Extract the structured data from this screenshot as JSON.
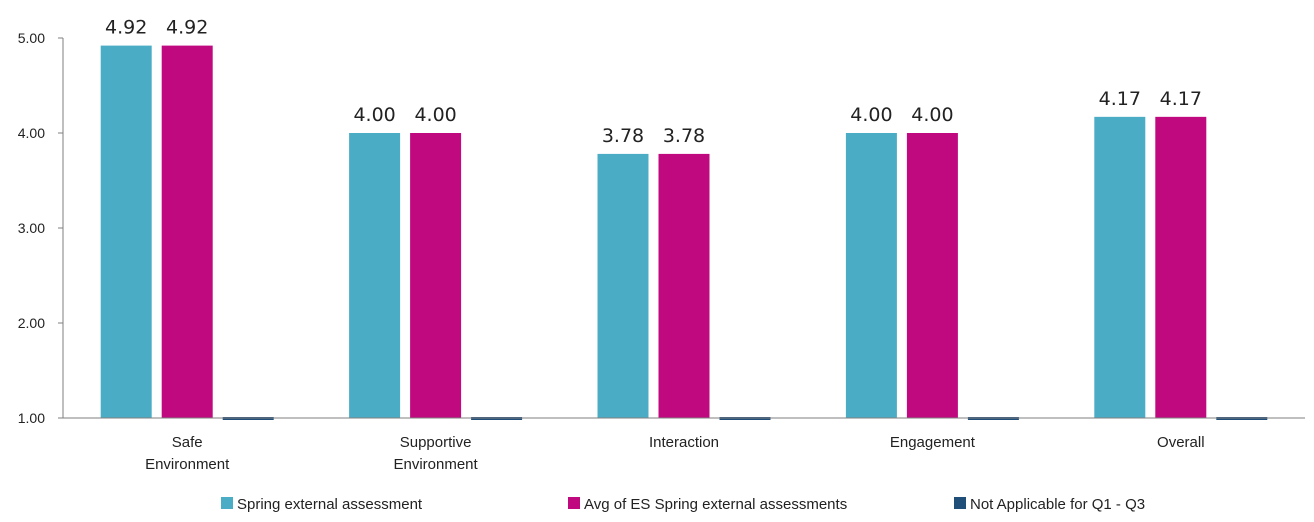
{
  "chart_data": {
    "type": "bar",
    "categories": [
      [
        "Safe",
        "Environment"
      ],
      [
        "Supportive",
        "Environment"
      ],
      [
        "Interaction"
      ],
      [
        "Engagement"
      ],
      [
        "Overall"
      ]
    ],
    "series": [
      {
        "name": "Spring external assessment",
        "values": [
          4.92,
          4.0,
          3.78,
          4.0,
          4.17
        ],
        "labels": [
          "4.92",
          "4.00",
          "3.78",
          "4.00",
          "4.17"
        ],
        "color": "#4BACC6"
      },
      {
        "name": "Avg of ES Spring external assessments",
        "values": [
          4.92,
          4.0,
          3.78,
          4.0,
          4.17
        ],
        "labels": [
          "4.92",
          "4.00",
          "3.78",
          "4.00",
          "4.17"
        ],
        "color": "#C0097F"
      },
      {
        "name": "Not Applicable for Q1 - Q3",
        "values": [
          1.0,
          1.0,
          1.0,
          1.0,
          1.0
        ],
        "labels": [
          null,
          null,
          null,
          null,
          null
        ],
        "color": "#1F4E79"
      }
    ],
    "yticks": [
      "1.00",
      "2.00",
      "3.00",
      "4.00",
      "5.00"
    ],
    "ylim": [
      1,
      5
    ],
    "grid": false,
    "legend": "bottom",
    "title": "",
    "xlabel": "",
    "ylabel": ""
  }
}
